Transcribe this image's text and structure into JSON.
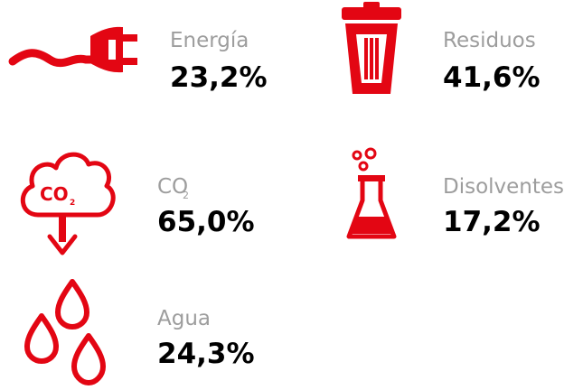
{
  "items": [
    {
      "label": "Energía",
      "value": "23,2%"
    },
    {
      "label": "Residuos",
      "value": "41,6%"
    },
    {
      "label": "CO",
      "label_sub": "2",
      "value": "65,0%"
    },
    {
      "label": "Disolventes",
      "value": "17,2%"
    },
    {
      "label": "Agua",
      "value": "24,3%"
    }
  ]
}
